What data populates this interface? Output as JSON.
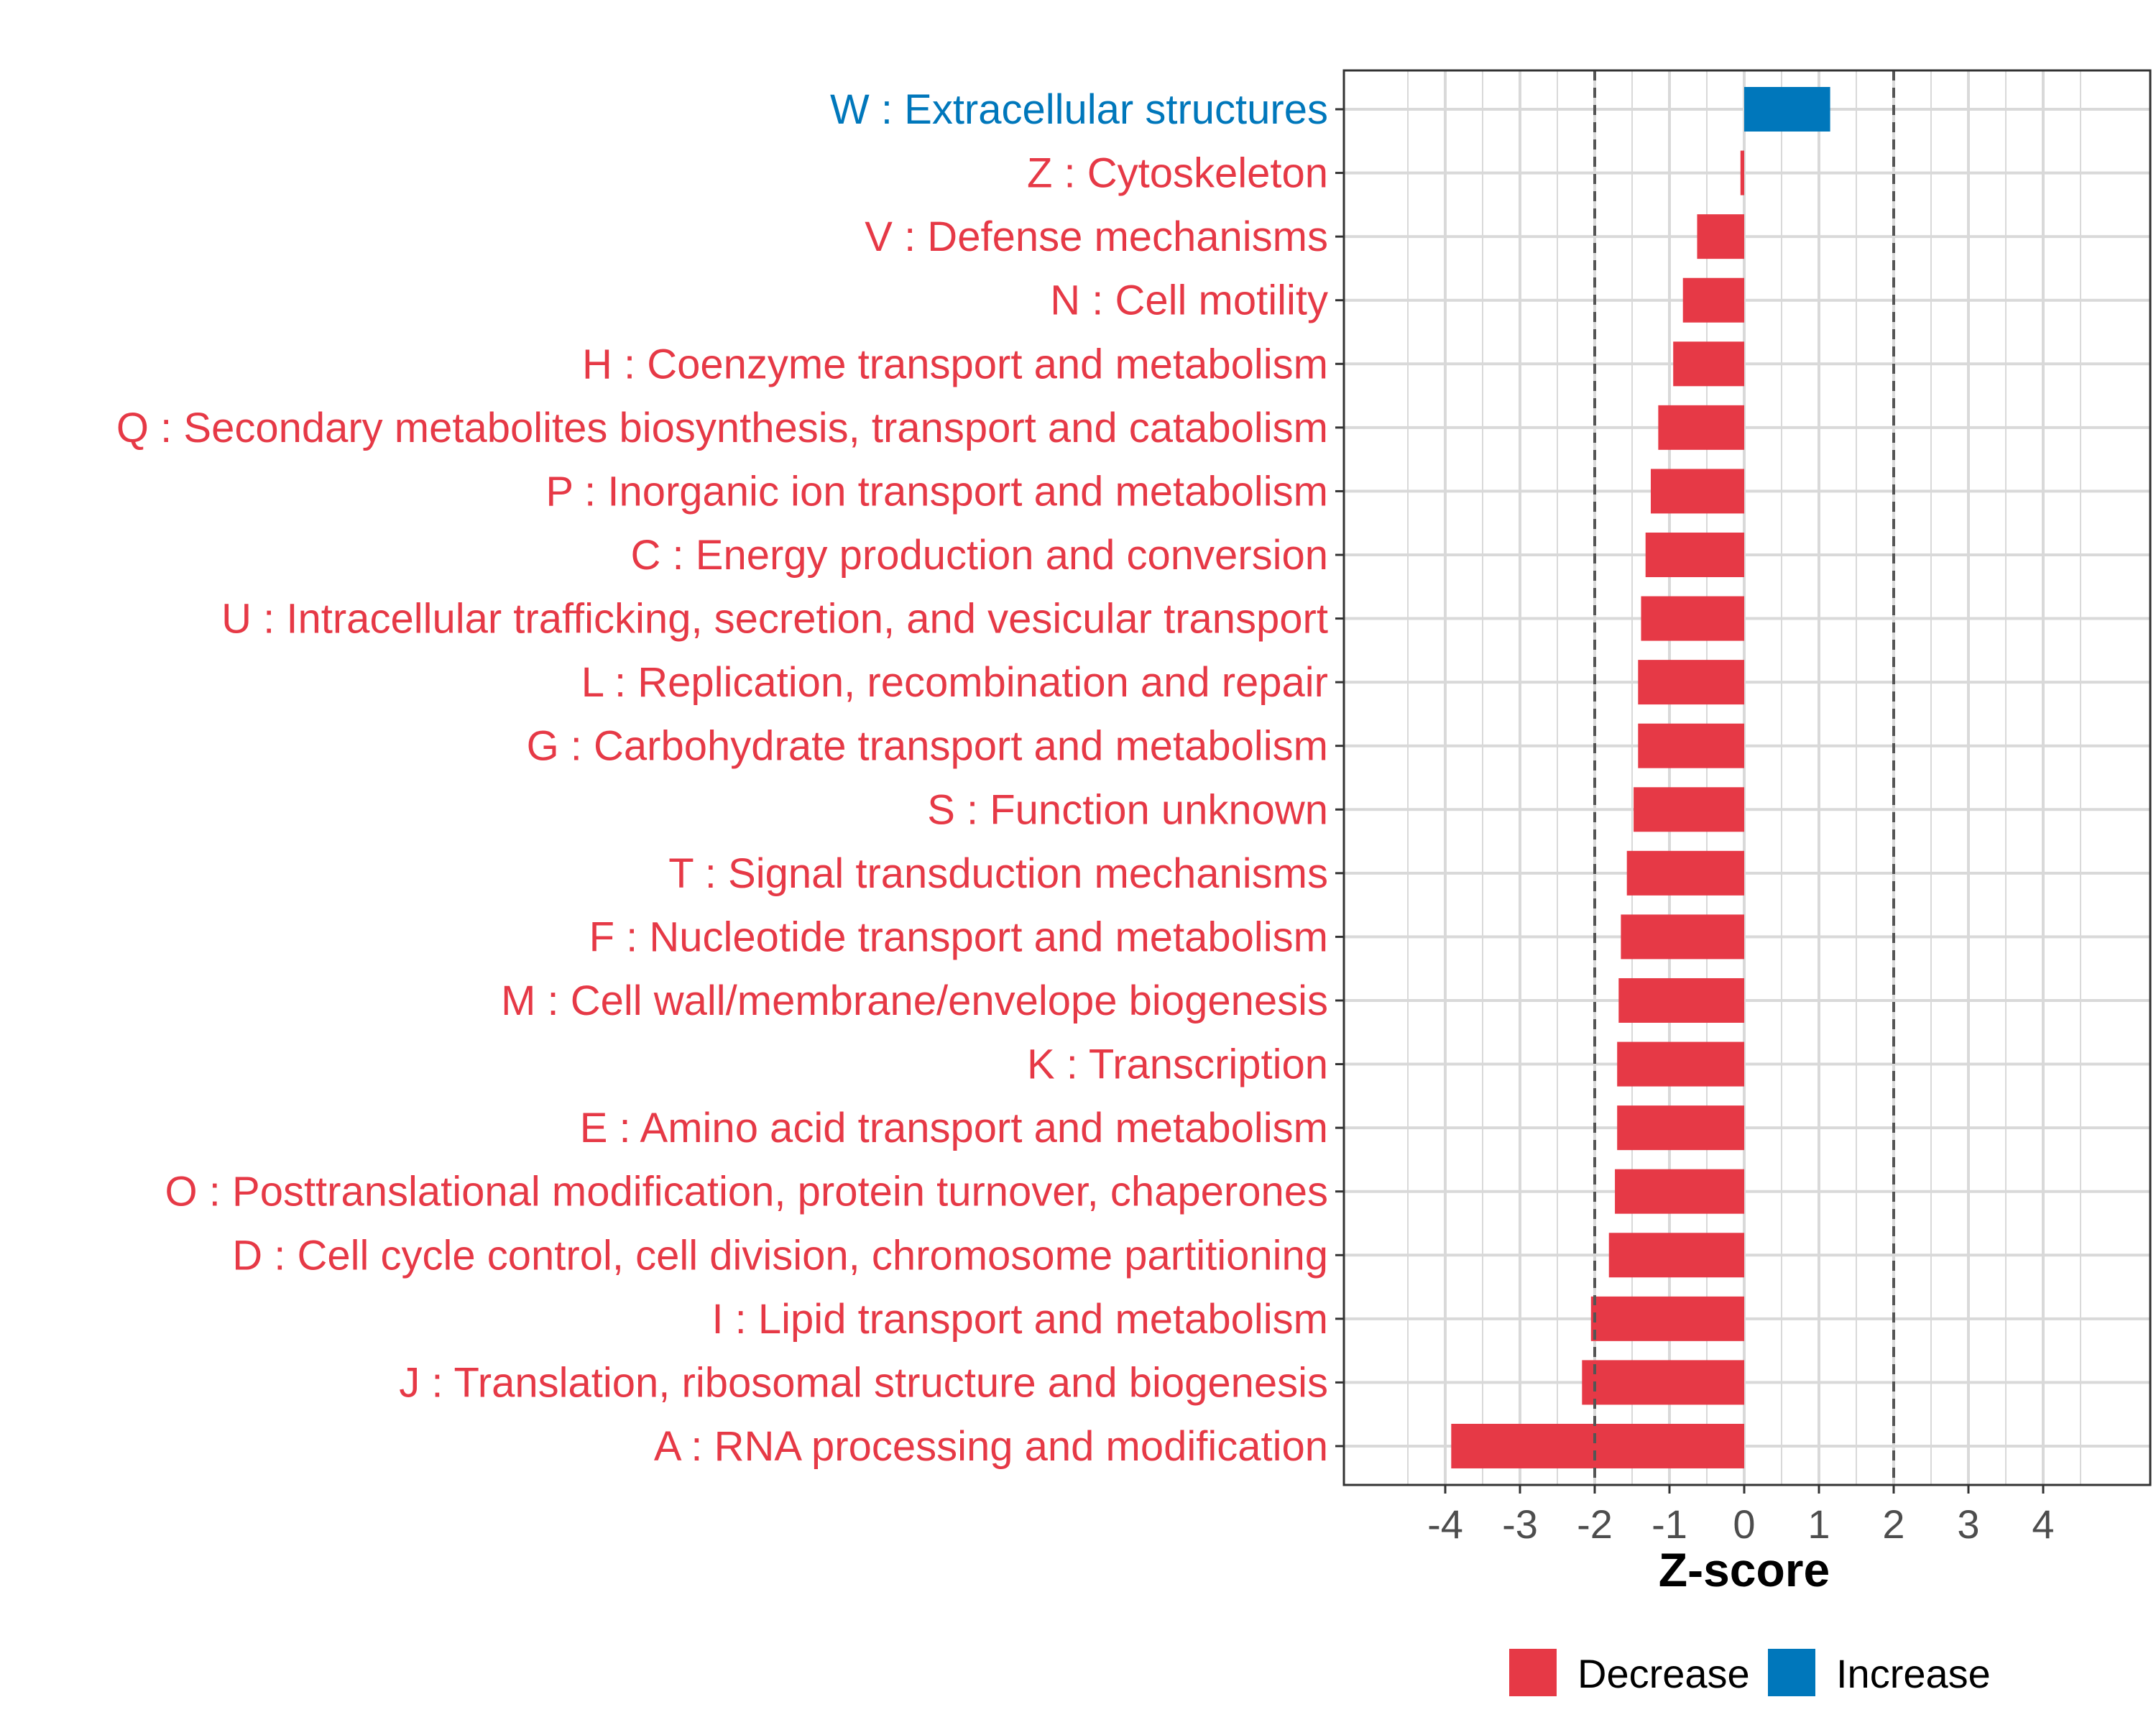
{
  "chart_data": {
    "type": "bar",
    "orientation": "horizontal",
    "xlabel": "Z-score",
    "ylabel": "",
    "xlim": [
      -5.4,
      5.4
    ],
    "xticks": [
      -4,
      -3,
      -2,
      -1,
      0,
      1,
      2,
      3,
      4
    ],
    "xtick_labels": [
      "-4",
      "-3",
      "-2",
      "-1",
      "0",
      "1",
      "2",
      "3",
      "4"
    ],
    "reference_lines": [
      -2,
      2
    ],
    "grid": true,
    "categories": [
      "W : Extracellular structures",
      "Z : Cytoskeleton",
      "V : Defense mechanisms",
      "N : Cell motility",
      "H : Coenzyme transport and metabolism",
      "Q : Secondary metabolites biosynthesis, transport and catabolism",
      "P : Inorganic ion transport and metabolism",
      "C : Energy production and conversion",
      "U : Intracellular trafficking, secretion, and vesicular transport",
      "L : Replication, recombination and repair",
      "G : Carbohydrate transport and metabolism",
      "S : Function unknown",
      "T : Signal transduction mechanisms",
      "F : Nucleotide transport and metabolism",
      "M : Cell wall/membrane/envelope biogenesis",
      "K : Transcription",
      "E : Amino acid transport and metabolism",
      "O : Posttranslational modification, protein turnover, chaperones",
      "D : Cell cycle control, cell division, chromosome partitioning",
      "I : Lipid transport and metabolism",
      "J : Translation, ribosomal structure and biogenesis",
      "A : RNA processing and modification"
    ],
    "values": [
      1.15,
      -0.05,
      -0.63,
      -0.82,
      -0.95,
      -1.15,
      -1.25,
      -1.32,
      -1.38,
      -1.42,
      -1.42,
      -1.48,
      -1.57,
      -1.65,
      -1.68,
      -1.7,
      -1.7,
      -1.73,
      -1.81,
      -2.05,
      -2.17,
      -3.92
    ],
    "groups": [
      "Increase",
      "Decrease",
      "Decrease",
      "Decrease",
      "Decrease",
      "Decrease",
      "Decrease",
      "Decrease",
      "Decrease",
      "Decrease",
      "Decrease",
      "Decrease",
      "Decrease",
      "Decrease",
      "Decrease",
      "Decrease",
      "Decrease",
      "Decrease",
      "Decrease",
      "Decrease",
      "Decrease",
      "Decrease"
    ],
    "legend": [
      {
        "name": "Decrease",
        "color": "#E63946"
      },
      {
        "name": "Increase",
        "color": "#0077BB"
      }
    ],
    "legend_position": "bottom",
    "colors": {
      "decrease": "#E63946",
      "increase": "#0077BB",
      "grid": "#D9D9D9",
      "reference_line": "#555555",
      "panel_border": "#333333"
    }
  }
}
